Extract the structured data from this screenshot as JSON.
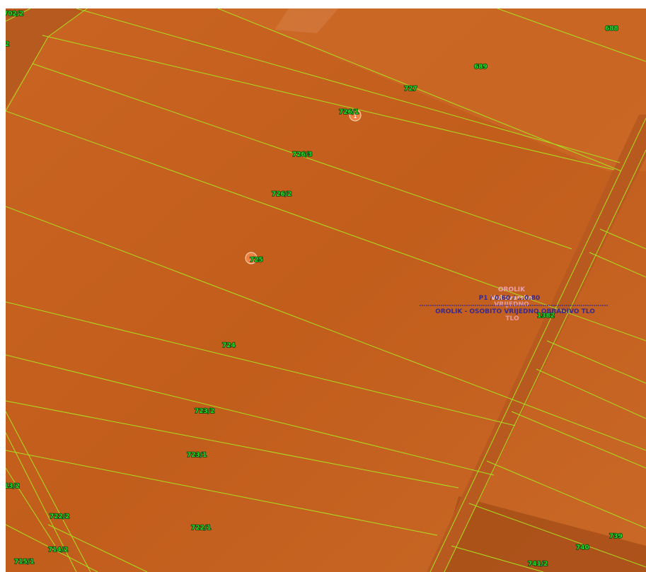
{
  "map": {
    "colors": {
      "field": "#c4601e",
      "field_light": "#d27030",
      "field_dark": "#a94d15",
      "road": "#b85a20",
      "boundary": "#a8e020",
      "parcel_label": "#22dd22",
      "overlay_text": "#3a2a8a",
      "overlay_text_light": "#e8a0b0"
    },
    "parcels": [
      "702/2",
      "2",
      "688",
      "689",
      "727",
      "726/1",
      "726/3",
      "726/2",
      "725",
      "724",
      "1382",
      "723/2",
      "723/1",
      "13/2",
      "722/2",
      "722/1",
      "714/2",
      "715/1",
      "739",
      "740",
      "741/2"
    ],
    "markers": [
      {
        "name": "marker-726-1",
        "glyph": "1"
      },
      {
        "name": "marker-725",
        "glyph": "1"
      }
    ],
    "overlay": {
      "name_top": "OROLIK",
      "name_big": "Vukovarsko",
      "code_line": "P1 / 0.60 / ...0.80",
      "designation": "OROLIK - OSOBITO VRIJEDNO OBRADIVO TLO",
      "sub_1": "VRIJEDNO",
      "sub_2": "TLO"
    }
  }
}
